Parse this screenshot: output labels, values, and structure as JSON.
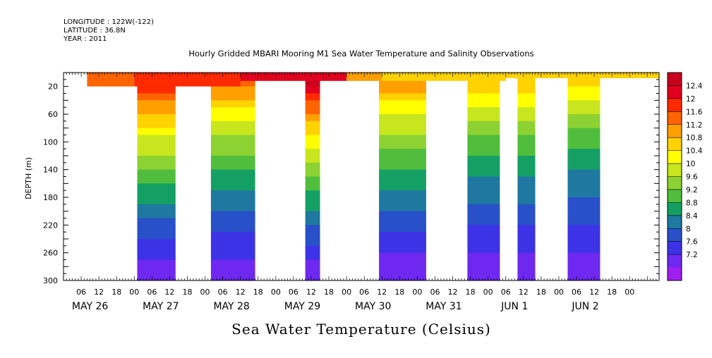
{
  "chart_data": {
    "type": "heatmap",
    "header": {
      "longitude": "LONGITUDE : 122W(-122)",
      "latitude": "LATITUDE : 36.8N",
      "year": "YEAR : 2011"
    },
    "title": "Hourly Gridded MBARI Mooring M1 Sea Water Temperature and Salinity Observations",
    "variable_label": "Sea Water Temperature (Celsius)",
    "ylabel": "DEPTH (m)",
    "y_range": [
      300,
      0
    ],
    "y_ticks": [
      20,
      60,
      100,
      140,
      180,
      220,
      260,
      300
    ],
    "x_range_hours": [
      0,
      202
    ],
    "x_hour_ticks": [
      "06",
      "12",
      "18",
      "00",
      "06",
      "12",
      "18",
      "00",
      "06",
      "12",
      "18",
      "00",
      "06",
      "12",
      "18",
      "00",
      "06",
      "12",
      "18",
      "00",
      "06",
      "12",
      "18",
      "00",
      "06",
      "12",
      "18",
      "00",
      "06",
      "12",
      "18",
      "00"
    ],
    "x_days": [
      "MAY 26",
      "MAY 27",
      "MAY 28",
      "MAY 29",
      "MAY 30",
      "MAY 31",
      "JUN  1",
      "JUN  2"
    ],
    "colorbar_levels": [
      "12.4",
      "12",
      "11.6",
      "11.2",
      "10.8",
      "10.4",
      "10",
      "9.6",
      "9.2",
      "8.8",
      "8.4",
      "8",
      "7.6",
      "7.2"
    ],
    "colorbar_colors": [
      "#c8001e",
      "#e1001e",
      "#ff2a00",
      "#ff6400",
      "#ffa000",
      "#ffd200",
      "#ffff00",
      "#c8e61e",
      "#8cd232",
      "#50be3c",
      "#14a064",
      "#1e78a0",
      "#2850c8",
      "#3c32e6",
      "#6e28f0",
      "#a01ef0"
    ],
    "data_segments": [
      {
        "start_hour": 25,
        "end_hour": 38,
        "max_depth": 300,
        "surface_temp": 11.8
      },
      {
        "start_hour": 50,
        "end_hour": 65,
        "max_depth": 300,
        "surface_temp": 11.2
      },
      {
        "start_hour": 82,
        "end_hour": 87,
        "max_depth": 300,
        "surface_temp": 12.2
      },
      {
        "start_hour": 107,
        "end_hour": 123,
        "max_depth": 300,
        "surface_temp": 11.0
      },
      {
        "start_hour": 137,
        "end_hour": 148,
        "max_depth": 300,
        "surface_temp": 10.6
      },
      {
        "start_hour": 154,
        "end_hour": 160,
        "max_depth": 300,
        "surface_temp": 10.6
      },
      {
        "start_hour": 171,
        "end_hour": 182,
        "max_depth": 300,
        "surface_temp": 10.4
      }
    ],
    "surface_band": [
      {
        "start_hour": 8,
        "end_hour": 24,
        "max_depth": 20,
        "temp": 11.1
      },
      {
        "start_hour": 24,
        "end_hour": 60,
        "max_depth": 20,
        "temp": 11.5
      },
      {
        "start_hour": 60,
        "end_hour": 96,
        "max_depth": 12,
        "temp": 12.0
      },
      {
        "start_hour": 96,
        "end_hour": 108,
        "max_depth": 12,
        "temp": 11.0
      },
      {
        "start_hour": 108,
        "end_hour": 150,
        "max_depth": 12,
        "temp": 10.5
      },
      {
        "start_hour": 150,
        "end_hour": 202,
        "max_depth": 8,
        "temp": 10.4
      }
    ],
    "deep_temp": 7.2,
    "grid": false
  }
}
